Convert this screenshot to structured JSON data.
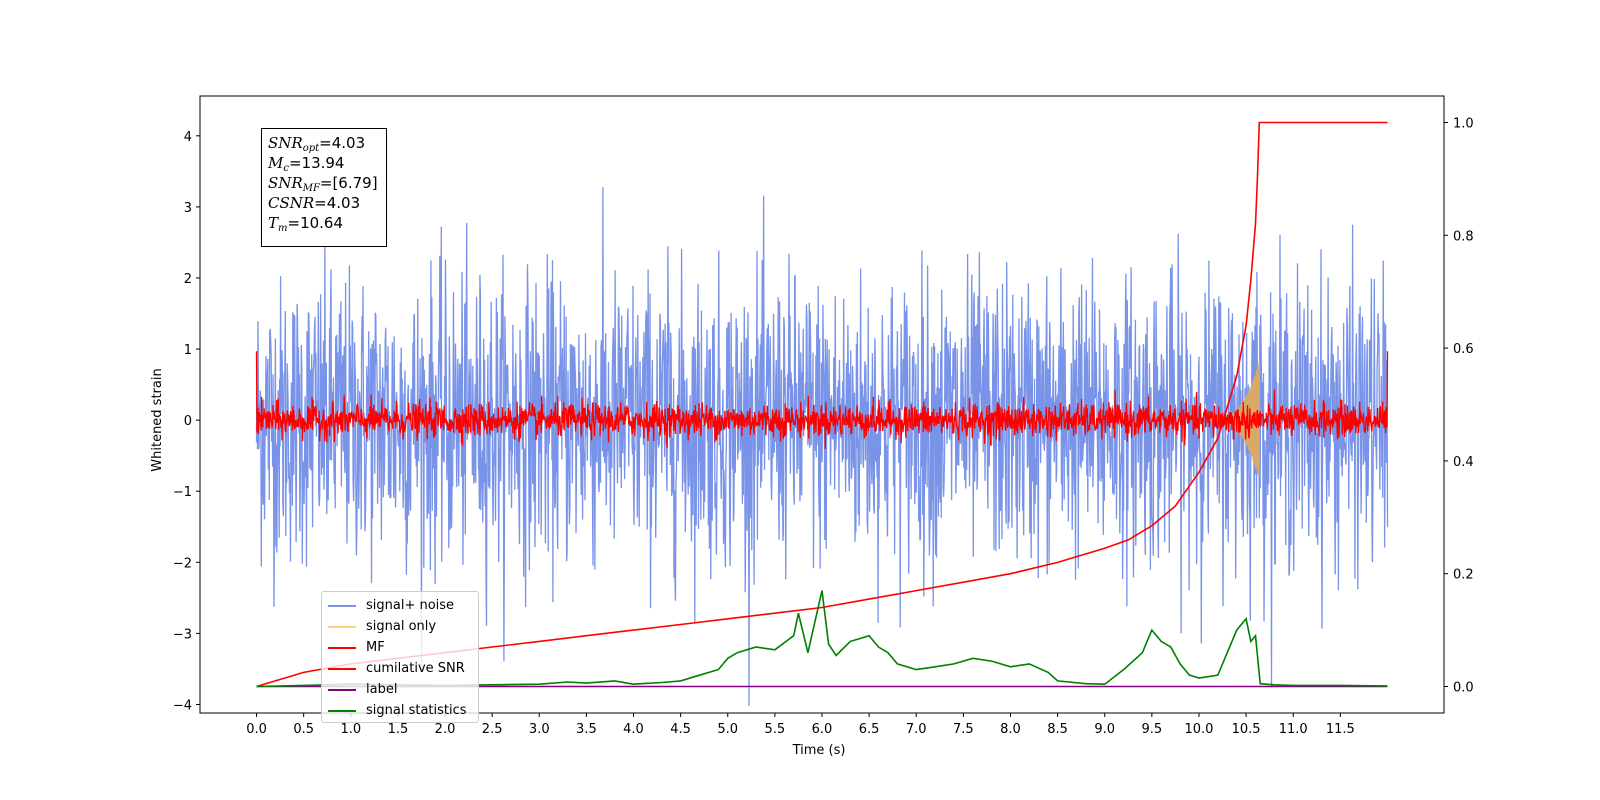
{
  "chart_data": {
    "type": "line",
    "xlabel": "Time (s)",
    "ylabel": "Whitened strain",
    "xlim": [
      -0.6,
      12.6
    ],
    "ylim": [
      -4.12,
      4.56
    ],
    "y2lim": [
      -0.047,
      1.047
    ],
    "x_ticks": [
      "0.0",
      "0.5",
      "1.0",
      "1.5",
      "2.0",
      "2.5",
      "3.0",
      "3.5",
      "4.0",
      "4.5",
      "5.0",
      "5.5",
      "6.0",
      "6.5",
      "7.0",
      "7.5",
      "8.0",
      "8.5",
      "9.0",
      "9.5",
      "10.0",
      "10.5",
      "11.0",
      "11.5"
    ],
    "y_ticks": [
      "4",
      "3",
      "2",
      "1",
      "0",
      "−1",
      "−2",
      "−3",
      "−4"
    ],
    "y2_ticks": [
      "1.0",
      "0.8",
      "0.6",
      "0.4",
      "0.2",
      "0.0"
    ],
    "annotations": {
      "snr_opt": "=4.03",
      "mc": "=13.94",
      "snr_mf": "=[6.79]",
      "csnr": "=4.03",
      "tm": "=10.64"
    },
    "series": [
      {
        "name": "signal+ noise",
        "color": "#7893e8",
        "axis": "left",
        "kind": "noise",
        "amplitude_typical": 1.0,
        "amplitude_peak": 4.18,
        "x_range": [
          0.0,
          12.0
        ]
      },
      {
        "name": "signal only",
        "color": "#ffd27f",
        "axis": "left",
        "kind": "chirp",
        "peak_time": 10.64,
        "peak_amplitude": 0.85
      },
      {
        "name": "MF",
        "color": "#ff0000",
        "axis": "left",
        "kind": "noise",
        "amplitude_typical": 0.12,
        "amplitude_peak": 0.5,
        "x_range": [
          0.0,
          12.0
        ]
      },
      {
        "name": "cumilative SNR",
        "color": "#ff0000",
        "axis": "right",
        "x": [
          0.0,
          0.5,
          1.0,
          1.5,
          2.0,
          2.5,
          3.0,
          3.5,
          4.0,
          4.5,
          5.0,
          5.5,
          6.0,
          6.5,
          7.0,
          7.5,
          8.0,
          8.5,
          9.0,
          9.25,
          9.5,
          9.75,
          10.0,
          10.2,
          10.4,
          10.5,
          10.55,
          10.6,
          10.62,
          10.64,
          11.0,
          11.5,
          12.0
        ],
        "y": [
          0.0,
          0.025,
          0.04,
          0.05,
          0.06,
          0.07,
          0.08,
          0.09,
          0.1,
          0.11,
          0.12,
          0.13,
          0.14,
          0.155,
          0.17,
          0.185,
          0.2,
          0.22,
          0.245,
          0.26,
          0.285,
          0.32,
          0.38,
          0.44,
          0.55,
          0.64,
          0.72,
          0.82,
          0.9,
          1.0,
          1.0,
          1.0,
          1.0
        ]
      },
      {
        "name": "label",
        "color": "#800080",
        "axis": "right",
        "x": [
          0.0,
          12.0
        ],
        "y": [
          0.0,
          0.0
        ]
      },
      {
        "name": "signal statistics",
        "color": "#008000",
        "axis": "right",
        "x": [
          0.0,
          0.5,
          1.0,
          1.5,
          2.0,
          2.5,
          3.0,
          3.3,
          3.5,
          3.8,
          4.0,
          4.3,
          4.5,
          4.7,
          4.9,
          5.0,
          5.1,
          5.3,
          5.5,
          5.7,
          5.75,
          5.85,
          6.0,
          6.07,
          6.15,
          6.3,
          6.4,
          6.5,
          6.6,
          6.7,
          6.8,
          7.0,
          7.2,
          7.4,
          7.6,
          7.8,
          8.0,
          8.2,
          8.4,
          8.5,
          8.8,
          9.0,
          9.2,
          9.4,
          9.5,
          9.6,
          9.7,
          9.8,
          9.9,
          10.0,
          10.2,
          10.4,
          10.5,
          10.55,
          10.6,
          10.65,
          10.8,
          11.0,
          11.5,
          12.0
        ],
        "y": [
          0.0,
          0.002,
          0.004,
          0.003,
          0.002,
          0.003,
          0.004,
          0.008,
          0.006,
          0.01,
          0.004,
          0.007,
          0.01,
          0.02,
          0.03,
          0.05,
          0.06,
          0.07,
          0.065,
          0.09,
          0.13,
          0.06,
          0.17,
          0.075,
          0.055,
          0.08,
          0.085,
          0.09,
          0.07,
          0.06,
          0.04,
          0.03,
          0.035,
          0.04,
          0.05,
          0.045,
          0.035,
          0.04,
          0.025,
          0.01,
          0.005,
          0.004,
          0.03,
          0.06,
          0.1,
          0.08,
          0.07,
          0.04,
          0.02,
          0.015,
          0.02,
          0.1,
          0.12,
          0.08,
          0.09,
          0.005,
          0.003,
          0.002,
          0.002,
          0.001
        ]
      }
    ]
  },
  "legend": [
    {
      "label": "signal+ noise",
      "color": "#7893e8"
    },
    {
      "label": "signal only",
      "color": "#ffd27f"
    },
    {
      "label": "MF",
      "color": "#ff0000"
    },
    {
      "label": "cumilative SNR",
      "color": "#ff0000"
    },
    {
      "label": "label",
      "color": "#800080"
    },
    {
      "label": "signal statistics",
      "color": "#008000"
    }
  ]
}
